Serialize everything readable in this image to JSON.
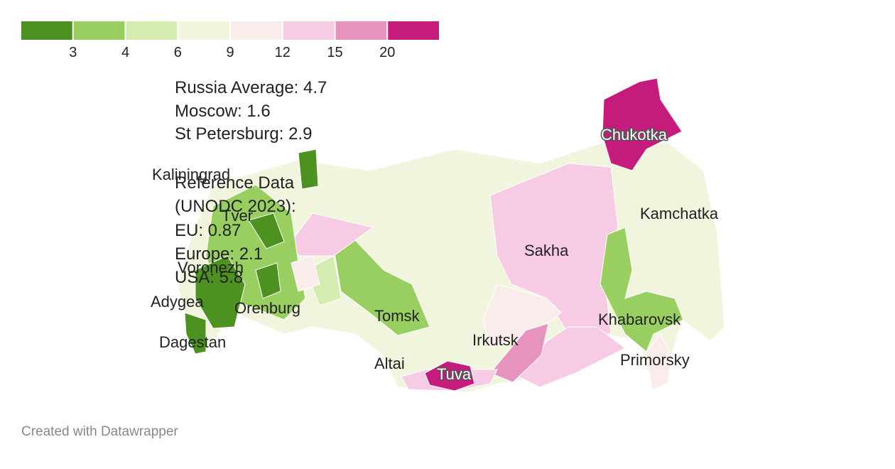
{
  "legend": {
    "colors": [
      "#4d9221",
      "#98cf60",
      "#d4ecb0",
      "#f1f5de",
      "#fbecec",
      "#f6cbe3",
      "#e793bf",
      "#c51b7d"
    ],
    "ticks": [
      3,
      4,
      6,
      9,
      12,
      15,
      20
    ]
  },
  "annotations": [
    "Russia Average: 4.7",
    "Moscow: 1.6",
    "St Petersburg: 2.9"
  ],
  "reference": [
    "Reference Data",
    "(UNODC 2023):",
    "EU: 0.87",
    "Europe: 2.1",
    "USA: 5.8"
  ],
  "labels": [
    "Kaliningrad",
    "Tver",
    "Voronezh",
    "Adygea",
    "Dagestan",
    "Orenburg",
    "Tomsk",
    "Altai",
    "Irkutsk",
    "Tuva",
    "Sakha",
    "Kamchatka",
    "Khabarovsk",
    "Primorsky",
    "Chukotka"
  ],
  "footer": "Created with Datawrapper"
}
